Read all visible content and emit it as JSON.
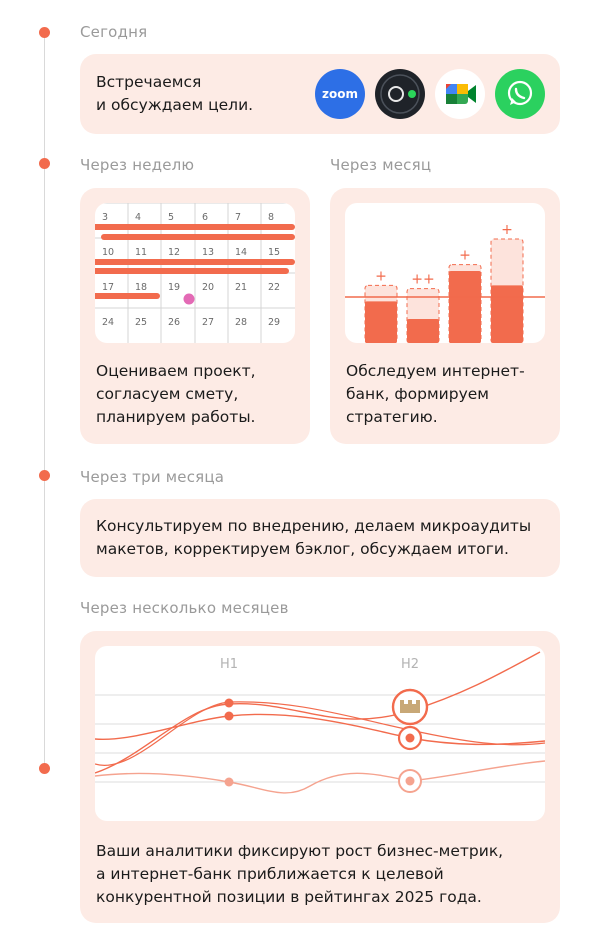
{
  "timeline": {
    "today": {
      "label": "Сегодня",
      "text": [
        "Встречаемся",
        "и обсуждаем цели."
      ],
      "icons": [
        "zoom-icon",
        "camera-app-icon",
        "google-meet-icon",
        "whatsapp-icon"
      ],
      "zoom_label": "zoom"
    },
    "week": {
      "label": "Через неделю",
      "text": [
        "Оцениваем проект,",
        "согласуем смету,",
        "планируем работы."
      ],
      "calendar": {
        "rows": [
          [
            "3",
            "4",
            "5",
            "6",
            "7",
            "8"
          ],
          [
            "10",
            "11",
            "12",
            "13",
            "14",
            "15"
          ],
          [
            "17",
            "18",
            "19",
            "20",
            "21",
            "22"
          ],
          [
            "24",
            "25",
            "26",
            "27",
            "28",
            "29"
          ]
        ]
      }
    },
    "month": {
      "label": "Через месяц",
      "text": [
        "Обследуем интернет-",
        "банк, формируем",
        "стратегию."
      ],
      "bars": [
        {
          "value": 0.52,
          "target": 0.72,
          "marker": "+"
        },
        {
          "value": 0.3,
          "target": 0.68,
          "marker": "++"
        },
        {
          "value": 0.9,
          "target": 0.98,
          "marker": "+"
        },
        {
          "value": 0.72,
          "target": 1.3,
          "marker": "+"
        }
      ]
    },
    "three_months": {
      "label": "Через три месяца",
      "text": [
        "Консультируем по внедрению, делаем микроаудиты",
        "макетов, корректируем бэклог, обсуждаем итоги."
      ]
    },
    "several_months": {
      "label": "Через несколько месяцев",
      "text": [
        "Ваши аналитики фиксируют рост бизнес-метрик,",
        "а интернет-банк приближается к целевой",
        "конкурентной позиции в рейтингах 2025 года."
      ],
      "chart": {
        "h1": "H1",
        "h2": "H2"
      }
    }
  },
  "colors": {
    "accent": "#f26b4d",
    "card": "#fdebe5",
    "muted": "#9a9a9a",
    "zoom": "#2d6fe6",
    "whatsapp": "#25d366",
    "pink": "#e36ab5"
  }
}
